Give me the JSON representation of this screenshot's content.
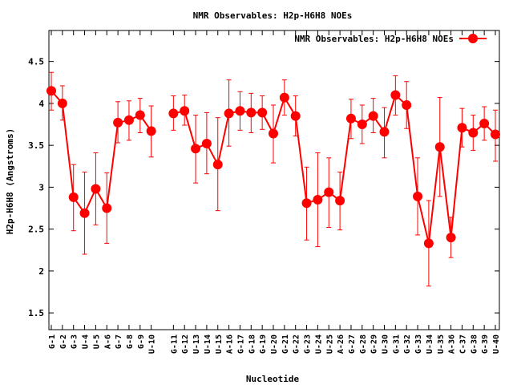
{
  "chart_data": {
    "type": "line",
    "title": "NMR Observables: H2p-H6H8 NOEs",
    "xlabel": "Nucleotide",
    "ylabel": "H2p-H6H8 (Angstroms)",
    "ylim": [
      1.3,
      4.87
    ],
    "yticks": [
      1.5,
      2,
      2.5,
      3,
      3.5,
      4,
      4.5
    ],
    "grid": false,
    "legend_position": "top-right",
    "color": "#ff0000",
    "categories": [
      "G-1",
      "G-2",
      "G-3",
      "U-4",
      "U-5",
      "A-6",
      "G-7",
      "G-8",
      "G-9",
      "U-10",
      "",
      "G-11",
      "G-12",
      "U-13",
      "U-14",
      "U-15",
      "A-16",
      "G-17",
      "G-18",
      "G-19",
      "U-20",
      "G-21",
      "G-22",
      "G-23",
      "U-24",
      "U-25",
      "A-26",
      "G-27",
      "G-28",
      "G-29",
      "U-30",
      "G-31",
      "G-32",
      "G-33",
      "U-34",
      "U-35",
      "A-36",
      "C-37",
      "G-38",
      "G-39",
      "U-40"
    ],
    "series": [
      {
        "name": "NMR Observables: H2p-H6H8 NOEs",
        "values": [
          4.15,
          4.0,
          2.88,
          2.69,
          2.98,
          2.75,
          3.77,
          3.8,
          3.86,
          3.67,
          null,
          3.88,
          3.91,
          3.46,
          3.52,
          3.27,
          3.88,
          3.91,
          3.89,
          3.89,
          3.64,
          4.07,
          3.85,
          2.81,
          2.85,
          2.94,
          2.84,
          3.82,
          3.75,
          3.85,
          3.66,
          4.1,
          3.98,
          2.89,
          2.33,
          3.48,
          2.4,
          3.71,
          3.65,
          3.76,
          3.63
        ],
        "err_low": [
          3.92,
          3.8,
          2.48,
          2.2,
          2.55,
          2.33,
          3.53,
          3.56,
          3.65,
          3.36,
          null,
          3.68,
          3.74,
          3.05,
          3.16,
          2.72,
          3.49,
          3.68,
          3.65,
          3.69,
          3.29,
          3.86,
          3.61,
          2.37,
          2.29,
          2.52,
          2.49,
          3.58,
          3.52,
          3.65,
          3.35,
          3.86,
          3.7,
          2.43,
          1.82,
          2.89,
          2.16,
          3.48,
          3.44,
          3.56,
          3.31
        ],
        "err_high": [
          4.37,
          4.21,
          3.27,
          3.18,
          3.41,
          3.17,
          4.02,
          4.03,
          4.06,
          3.97,
          null,
          4.09,
          4.1,
          3.86,
          3.89,
          3.83,
          4.28,
          4.14,
          4.12,
          4.09,
          3.98,
          4.28,
          4.09,
          3.24,
          3.41,
          3.35,
          3.18,
          4.05,
          3.98,
          4.06,
          3.95,
          4.33,
          4.26,
          3.35,
          2.84,
          4.07,
          2.64,
          3.94,
          3.86,
          3.96,
          3.92
        ]
      }
    ]
  }
}
